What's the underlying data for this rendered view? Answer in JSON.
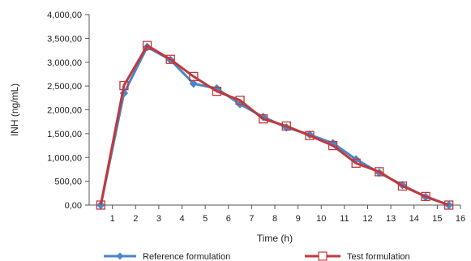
{
  "chart_data": {
    "type": "line",
    "title": "",
    "xlabel": "Time (h)",
    "ylabel": "INH (ng/mL)",
    "xlim": [
      0,
      16
    ],
    "ylim": [
      0,
      4000
    ],
    "x_ticks": [
      1,
      2,
      3,
      4,
      5,
      6,
      7,
      8,
      9,
      10,
      11,
      12,
      13,
      14,
      15,
      16
    ],
    "y_ticks": [
      0,
      500,
      1000,
      1500,
      2000,
      2500,
      3000,
      3500,
      4000
    ],
    "y_tick_labels": [
      "0,00",
      "500,00",
      "1,000,00",
      "1,500,00",
      "2,000,00",
      "2,500,00",
      "3,000,00",
      "3,500,00",
      "4,000,00"
    ],
    "x": [
      0.5,
      1.5,
      2.5,
      3.5,
      4.5,
      5.5,
      6.5,
      7.5,
      8.5,
      9.5,
      10.5,
      11.5,
      12.5,
      13.5,
      14.5,
      15.5
    ],
    "series": [
      {
        "name": "Reference formulation",
        "color": "#4a86c8",
        "marker": "diamond",
        "values": [
          0,
          2350,
          3320,
          3050,
          2550,
          2450,
          2120,
          1850,
          1630,
          1480,
          1300,
          960,
          680,
          420,
          170,
          0
        ]
      },
      {
        "name": "Test formulation",
        "color": "#c0393b",
        "marker": "square",
        "values": [
          0,
          2510,
          3350,
          3060,
          2700,
          2390,
          2200,
          1810,
          1660,
          1460,
          1250,
          880,
          700,
          400,
          180,
          0
        ]
      }
    ],
    "grid": false,
    "legend_position": "bottom"
  }
}
